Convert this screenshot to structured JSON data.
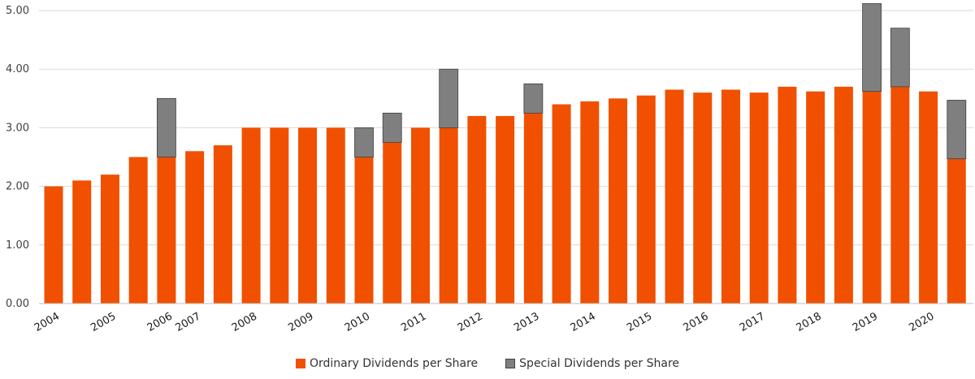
{
  "chart_data": {
    "type": "bar",
    "stacked": true,
    "ylim": [
      0,
      5
    ],
    "y_ticks": [
      "0.00",
      "1.00",
      "2.00",
      "3.00",
      "4.00",
      "5.00"
    ],
    "grid": "horizontal",
    "legend_position": "bottom",
    "x_tick_labels": [
      "2004",
      "2005",
      "2006",
      "2007",
      "2008",
      "2009",
      "2010",
      "2011",
      "2012",
      "2013",
      "2014",
      "2015",
      "2016",
      "2017",
      "2018",
      "2019",
      "2020"
    ],
    "series": [
      {
        "name": "Ordinary Dividends per Share",
        "color": "#f05000",
        "values": [
          2.0,
          2.1,
          2.2,
          2.5,
          2.5,
          2.6,
          2.7,
          3.0,
          3.0,
          3.0,
          3.0,
          2.5,
          2.75,
          3.0,
          3.0,
          3.2,
          3.2,
          3.25,
          3.4,
          3.45,
          3.5,
          3.55,
          3.65,
          3.6,
          3.65,
          3.6,
          3.7,
          3.62,
          3.7,
          3.62,
          3.7,
          3.62,
          2.47
        ]
      },
      {
        "name": "Special Dividends per Share",
        "color": "#7f7f7f",
        "values": [
          0,
          0,
          0,
          0,
          1.0,
          0,
          0,
          0,
          0,
          0,
          0,
          0.5,
          0.5,
          0,
          1.0,
          0,
          0,
          0.5,
          0,
          0,
          0,
          0,
          0,
          0,
          0,
          0,
          0,
          0,
          0,
          1.5,
          1.0,
          0,
          1.0
        ]
      }
    ]
  }
}
